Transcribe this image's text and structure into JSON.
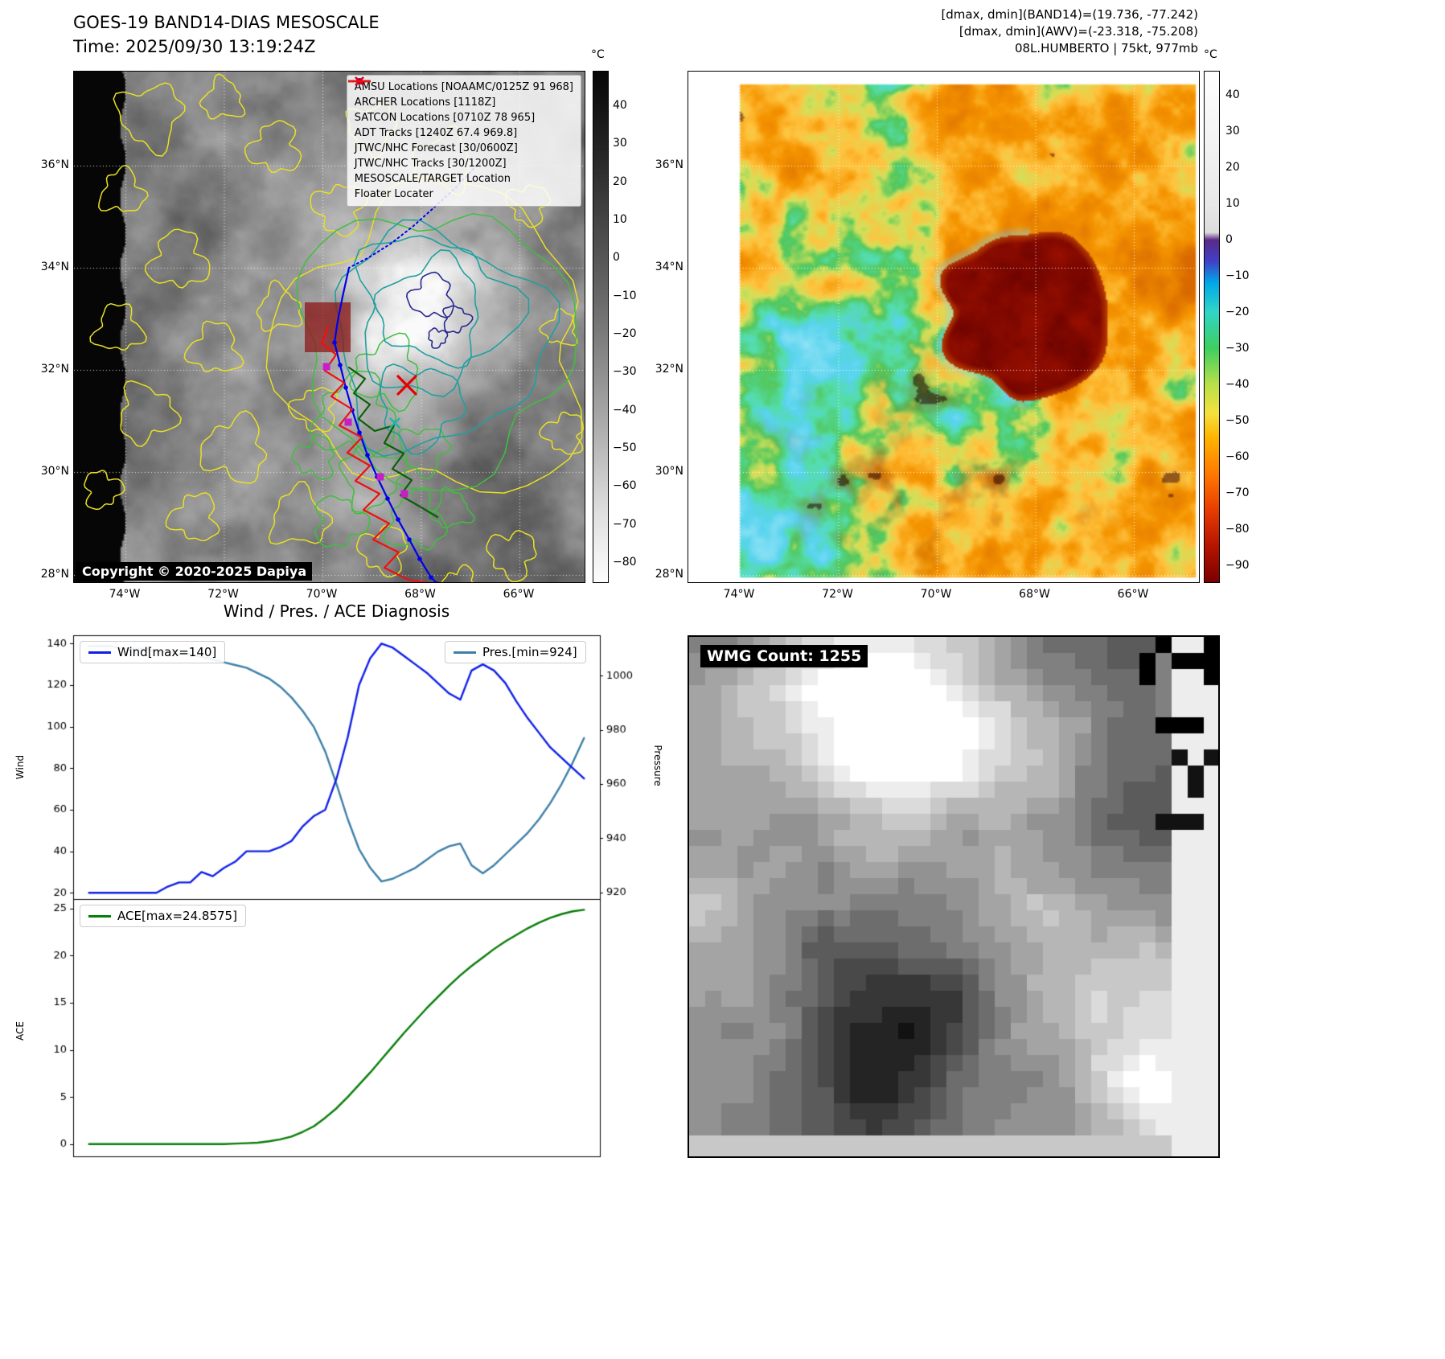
{
  "panel_band14": {
    "title": "GOES-19 BAND14-DIAS MESOSCALE",
    "subtitle": "Time: 2025/09/30 13:19:24Z",
    "copyright": "Copyright © 2020-2025 Dapiya",
    "colorbar": {
      "unit": "°C",
      "ticks": [
        40,
        30,
        20,
        10,
        0,
        -10,
        -20,
        -30,
        -40,
        -50,
        -60,
        -70,
        -80
      ]
    },
    "lat_ticks": [
      "36°N",
      "34°N",
      "32°N",
      "30°N",
      "28°N"
    ],
    "lon_ticks": [
      "74°W",
      "72°W",
      "70°W",
      "68°W",
      "66°W"
    ],
    "legend": [
      {
        "label": "AMSU Locations [NOAAMC/0125Z 91 968]",
        "marker": "square",
        "color": "#c71fc7"
      },
      {
        "label": "ARCHER Locations [1118Z]",
        "marker": "square",
        "color": "#c71fc7"
      },
      {
        "label": "SATCON Locations [0710Z 78 965]",
        "marker": "x",
        "color": "#20b2aa"
      },
      {
        "label": "ADT Tracks [1240Z 67.4 969.8]",
        "marker": "line",
        "color": "#0a600a"
      },
      {
        "label": "JTWC/NHC Forecast [30/0600Z]",
        "marker": "dotted",
        "color": "#0000ee"
      },
      {
        "label": "JTWC/NHC Tracks [30/1200Z]",
        "marker": "line-dot",
        "color": "#0000ee"
      },
      {
        "label": "MESOSCALE/TARGET Location",
        "marker": "x",
        "color": "#e80000"
      },
      {
        "label": "Floater Locater",
        "marker": "line",
        "color": "#ef1010"
      }
    ]
  },
  "panel_awv": {
    "header_lines": [
      "[dmax, dmin](BAND14)=(19.736, -77.242)",
      "[dmax, dmin](AWV)=(-23.318, -75.208)",
      "08L.HUMBERTO | 75kt, 977mb"
    ],
    "colorbar": {
      "unit": "°C",
      "ticks": [
        40,
        30,
        20,
        10,
        0,
        -10,
        -20,
        -30,
        -40,
        -50,
        -60,
        -70,
        -80,
        -90
      ]
    },
    "lat_ticks": [
      "36°N",
      "34°N",
      "32°N",
      "30°N",
      "28°N"
    ],
    "lon_ticks": [
      "74°W",
      "72°W",
      "70°W",
      "68°W",
      "66°W"
    ]
  },
  "panel_wmg": {
    "label": "WMG Count: 1255"
  },
  "chart_data": [
    {
      "type": "line",
      "title": "Wind / Pres. / ACE Diagnosis",
      "ylabel_left": "Wind",
      "ylabel_right": "Pressure",
      "yticks_left": [
        20,
        40,
        60,
        80,
        100,
        120,
        140
      ],
      "yticks_right": [
        920,
        940,
        960,
        980,
        1000
      ],
      "ylim_left": [
        17,
        144
      ],
      "ylim_right": [
        917.5,
        1015
      ],
      "x_range": [
        0,
        1
      ],
      "legend_position": "upper-left / upper-right",
      "series": [
        {
          "name": "Wind[max=140]",
          "color": "#0f1fe8",
          "axis": "left",
          "values": [
            20,
            20,
            20,
            20,
            20,
            20,
            20,
            23,
            25,
            25,
            30,
            28,
            32,
            35,
            40,
            40,
            40,
            42,
            45,
            52,
            57,
            60,
            75,
            95,
            120,
            133,
            140,
            138,
            134,
            130,
            126,
            121,
            116,
            113,
            127,
            130,
            127,
            121,
            112,
            104,
            97,
            90,
            85,
            80,
            75
          ]
        },
        {
          "name": "Pres.[min=924]",
          "color": "#3d7fa8",
          "axis": "right",
          "values": [
            1011,
            1011,
            1011,
            1010,
            1010,
            1010,
            1009,
            1009,
            1008,
            1008,
            1007,
            1006,
            1005,
            1004,
            1003,
            1001,
            999,
            996,
            992,
            987,
            981,
            972,
            960,
            947,
            936,
            929,
            924,
            925,
            927,
            929,
            932,
            935,
            937,
            938,
            930,
            927,
            930,
            934,
            938,
            942,
            947,
            953,
            960,
            968,
            977
          ]
        }
      ]
    },
    {
      "type": "line",
      "ylabel": "ACE",
      "yticks": [
        0,
        5,
        10,
        15,
        20,
        25
      ],
      "ylim": [
        -1.3,
        26
      ],
      "legend_position": "upper-left",
      "series": [
        {
          "name": "ACE[max=24.8575]",
          "color": "#077d07",
          "values": [
            0,
            0,
            0,
            0,
            0,
            0,
            0,
            0,
            0,
            0,
            0,
            0,
            0,
            0.05,
            0.1,
            0.15,
            0.3,
            0.5,
            0.8,
            1.3,
            1.9,
            2.8,
            3.8,
            5,
            6.3,
            7.6,
            9,
            10.4,
            11.8,
            13.1,
            14.4,
            15.6,
            16.8,
            17.9,
            18.9,
            19.8,
            20.7,
            21.5,
            22.2,
            22.9,
            23.5,
            24,
            24.4,
            24.7,
            24.8575
          ]
        }
      ]
    }
  ]
}
